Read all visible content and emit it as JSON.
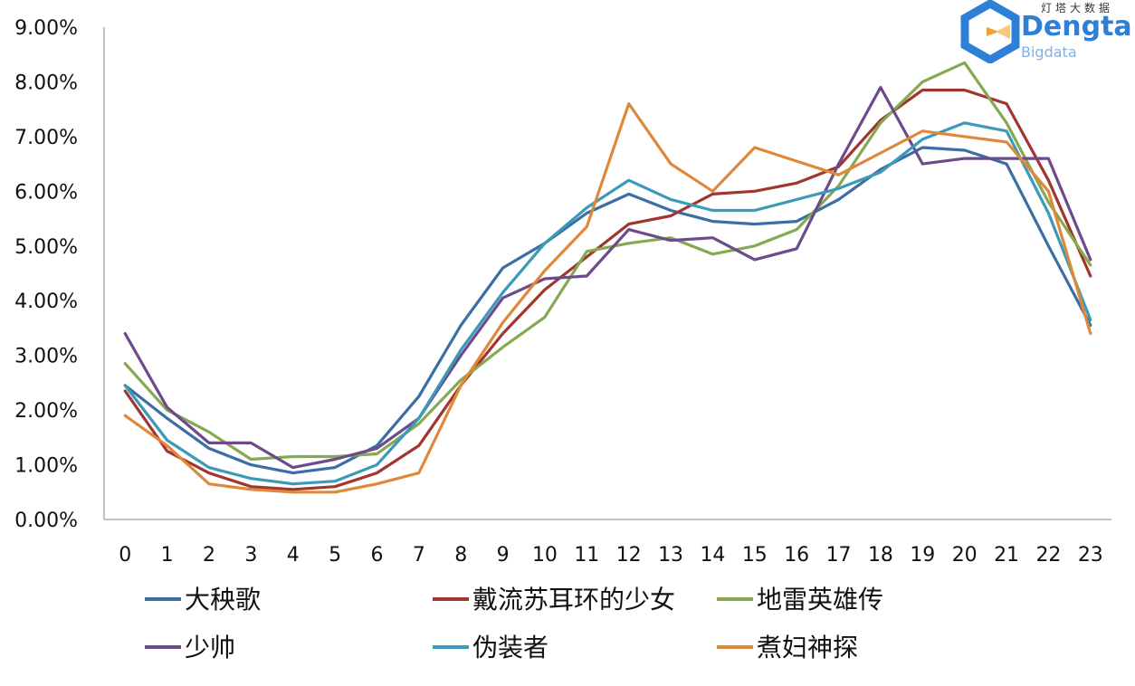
{
  "brand": {
    "small": "灯塔大数据",
    "main": "Dengta",
    "sub": "Bigdata",
    "colors": {
      "blue": "#2e7fd6",
      "orange": "#f0a030"
    }
  },
  "chart_data": {
    "type": "line",
    "title": "",
    "xlabel": "",
    "ylabel": "",
    "x": [
      0,
      1,
      2,
      3,
      4,
      5,
      6,
      7,
      8,
      9,
      10,
      11,
      12,
      13,
      14,
      15,
      16,
      17,
      18,
      19,
      20,
      21,
      22,
      23
    ],
    "x_tick_labels": [
      "0",
      "1",
      "2",
      "3",
      "4",
      "5",
      "6",
      "7",
      "8",
      "9",
      "10",
      "11",
      "12",
      "13",
      "14",
      "15",
      "16",
      "17",
      "18",
      "19",
      "20",
      "21",
      "22",
      "23"
    ],
    "ylim": [
      0,
      9
    ],
    "y_ticks": [
      0,
      1,
      2,
      3,
      4,
      5,
      6,
      7,
      8,
      9
    ],
    "y_tick_labels": [
      "0.00%",
      "1.00%",
      "2.00%",
      "3.00%",
      "4.00%",
      "5.00%",
      "6.00%",
      "7.00%",
      "8.00%",
      "9.00%"
    ],
    "grid": false,
    "legend_position": "bottom",
    "series": [
      {
        "name": "大秧歌",
        "color": "#3a6ea5",
        "values": [
          2.45,
          1.85,
          1.3,
          1.0,
          0.85,
          0.95,
          1.35,
          2.25,
          3.55,
          4.6,
          5.05,
          5.6,
          5.95,
          5.65,
          5.45,
          5.4,
          5.45,
          5.85,
          6.4,
          6.8,
          6.75,
          6.5,
          5.0,
          3.55
        ]
      },
      {
        "name": "戴流苏耳环的少女",
        "color": "#a0362f",
        "values": [
          2.35,
          1.25,
          0.85,
          0.6,
          0.55,
          0.6,
          0.85,
          1.35,
          2.45,
          3.4,
          4.2,
          4.8,
          5.4,
          5.55,
          5.95,
          6.0,
          6.15,
          6.45,
          7.3,
          7.85,
          7.85,
          7.6,
          6.2,
          4.45
        ]
      },
      {
        "name": "地雷英雄传",
        "color": "#86a850",
        "values": [
          2.85,
          2.0,
          1.6,
          1.1,
          1.15,
          1.15,
          1.2,
          1.75,
          2.55,
          3.15,
          3.7,
          4.9,
          5.05,
          5.15,
          4.85,
          5.0,
          5.3,
          6.1,
          7.25,
          8.0,
          8.35,
          7.25,
          5.8,
          4.65
        ]
      },
      {
        "name": "少帅",
        "color": "#6c4a8c",
        "values": [
          3.4,
          2.05,
          1.4,
          1.4,
          0.95,
          1.1,
          1.3,
          1.85,
          3.0,
          4.05,
          4.4,
          4.45,
          5.3,
          5.1,
          5.15,
          4.75,
          4.95,
          6.5,
          7.9,
          6.5,
          6.6,
          6.6,
          6.6,
          4.75
        ]
      },
      {
        "name": "伪装者",
        "color": "#3a9ab8",
        "values": [
          2.45,
          1.45,
          0.95,
          0.75,
          0.65,
          0.7,
          1.0,
          1.85,
          3.1,
          4.15,
          5.05,
          5.7,
          6.2,
          5.85,
          5.65,
          5.65,
          5.85,
          6.05,
          6.35,
          6.95,
          7.25,
          7.1,
          5.6,
          3.65
        ]
      },
      {
        "name": "煮妇神探",
        "color": "#e0883a",
        "values": [
          1.9,
          1.35,
          0.65,
          0.55,
          0.5,
          0.5,
          0.65,
          0.85,
          2.45,
          3.6,
          4.55,
          5.35,
          7.6,
          6.5,
          6.0,
          6.8,
          6.55,
          6.3,
          6.7,
          7.1,
          7.0,
          6.9,
          6.0,
          3.4
        ]
      }
    ]
  }
}
